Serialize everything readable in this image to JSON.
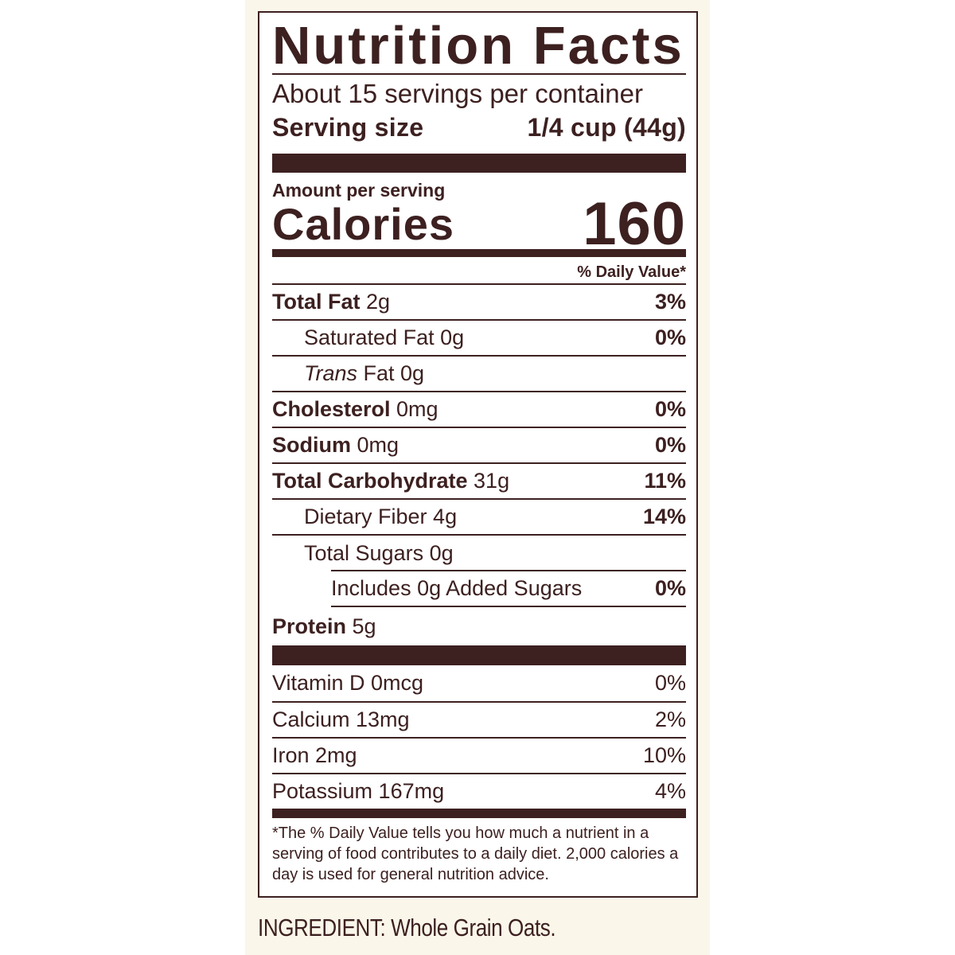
{
  "label": {
    "title": "Nutrition Facts",
    "servings_per_container": "About 15 servings per container",
    "serving_size_label": "Serving size",
    "serving_size_value": "1/4 cup (44g)",
    "amount_per_serving": "Amount per serving",
    "calories_label": "Calories",
    "calories_value": "160",
    "daily_value_header": "% Daily Value*",
    "nutrients": [
      {
        "name": "Total Fat",
        "amount": "2g",
        "dv": "3%",
        "bold": true,
        "indent": 0
      },
      {
        "name": "Saturated Fat",
        "amount": "0g",
        "dv": "0%",
        "bold": false,
        "indent": 1
      },
      {
        "name": "Trans",
        "name_suffix": "Fat",
        "amount": "0g",
        "dv": "",
        "bold": false,
        "italic_prefix": true,
        "indent": 1
      },
      {
        "name": "Cholesterol",
        "amount": "0mg",
        "dv": "0%",
        "bold": true,
        "indent": 0
      },
      {
        "name": "Sodium",
        "amount": "0mg",
        "dv": "0%",
        "bold": true,
        "indent": 0
      },
      {
        "name": "Total Carbohydrate",
        "amount": "31g",
        "dv": "11%",
        "bold": true,
        "indent": 0
      },
      {
        "name": "Dietary Fiber",
        "amount": "4g",
        "dv": "14%",
        "bold": false,
        "indent": 1
      },
      {
        "name": "Total Sugars",
        "amount": "0g",
        "dv": "",
        "bold": false,
        "indent": 1
      },
      {
        "name": "Includes 0g Added Sugars",
        "amount": "",
        "dv": "0%",
        "bold": false,
        "indent": 2
      },
      {
        "name": "Protein",
        "amount": "5g",
        "dv": "",
        "bold": true,
        "indent": 0
      }
    ],
    "vitamins": [
      {
        "name": "Vitamin D",
        "amount": "0mcg",
        "dv": "0%"
      },
      {
        "name": "Calcium",
        "amount": "13mg",
        "dv": "2%"
      },
      {
        "name": "Iron",
        "amount": "2mg",
        "dv": "10%"
      },
      {
        "name": "Potassium",
        "amount": "167mg",
        "dv": "4%"
      }
    ],
    "footnote": "*The % Daily Value tells you how much a nutrient in a serving of food contributes to a daily diet. 2,000 calories a day is used for general nutrition advice."
  },
  "ingredients": "INGREDIENT: Whole Grain Oats.",
  "colors": {
    "ink": "#3d2020",
    "background": "#faf6ea"
  }
}
